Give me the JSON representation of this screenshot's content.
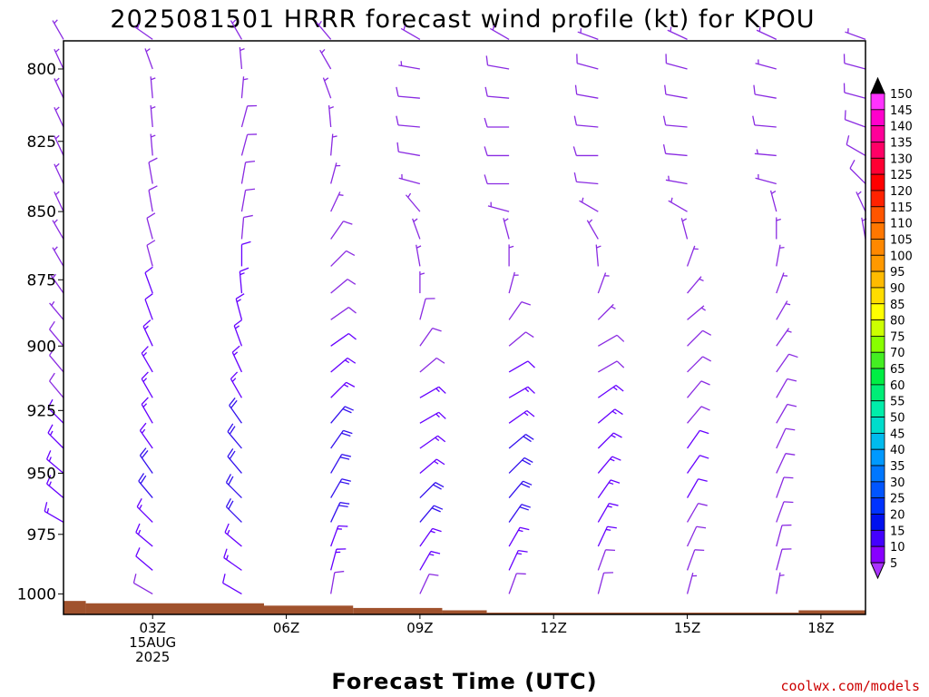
{
  "chart_data": {
    "type": "wind-barb-profile",
    "title": "2025081501 HRRR forecast wind profile (kt) for KPOU",
    "xlabel": "Forecast Time (UTC)",
    "credit": "coolwx.com/models",
    "x_ticks": [
      {
        "hour": 3,
        "lines": [
          "03Z",
          "15AUG",
          "2025"
        ]
      },
      {
        "hour": 6,
        "lines": [
          "06Z"
        ]
      },
      {
        "hour": 9,
        "lines": [
          "09Z"
        ]
      },
      {
        "hour": 12,
        "lines": [
          "12Z"
        ]
      },
      {
        "hour": 15,
        "lines": [
          "15Z"
        ]
      },
      {
        "hour": 18,
        "lines": [
          "18Z"
        ]
      }
    ],
    "xlim": [
      1,
      19
    ],
    "ylim": [
      790,
      1013
    ],
    "y_ticks": [
      800,
      825,
      850,
      875,
      900,
      925,
      950,
      975,
      1000
    ],
    "levels": [
      790,
      800,
      810,
      820,
      830,
      840,
      850,
      860,
      870,
      880,
      890,
      900,
      910,
      920,
      930,
      940,
      950,
      960,
      970,
      980,
      990,
      1000
    ],
    "surface_pressure_segments": [
      {
        "from": 1.0,
        "to": 1.5,
        "pressure": 1003
      },
      {
        "from": 1.5,
        "to": 5.5,
        "pressure": 1004
      },
      {
        "from": 5.5,
        "to": 7.5,
        "pressure": 1005
      },
      {
        "from": 7.5,
        "to": 9.5,
        "pressure": 1006
      },
      {
        "from": 9.5,
        "to": 10.5,
        "pressure": 1007
      },
      {
        "from": 10.5,
        "to": 17.5,
        "pressure": 1008
      },
      {
        "from": 17.5,
        "to": 19.0,
        "pressure": 1007
      }
    ],
    "times": [
      {
        "hour": 1,
        "bottom": 975,
        "dir": [
          330,
          335,
          335,
          335,
          335,
          335,
          335,
          330,
          330,
          325,
          320,
          320,
          320,
          320,
          315,
          315,
          310,
          310,
          300,
          300
        ],
        "spd": [
          3,
          4,
          5,
          5,
          6,
          6,
          6,
          7,
          7,
          7,
          7,
          8,
          8,
          10,
          12,
          14,
          16,
          17,
          17,
          15
        ]
      },
      {
        "hour": 3,
        "bottom": 1003,
        "dir": [
          305,
          340,
          355,
          355,
          355,
          350,
          350,
          345,
          345,
          340,
          340,
          335,
          330,
          330,
          330,
          325,
          325,
          320,
          315,
          310,
          310,
          300
        ],
        "spd": [
          4,
          5,
          6,
          6,
          7,
          8,
          9,
          10,
          11,
          12,
          12,
          13,
          14,
          15,
          16,
          17,
          18,
          18,
          17,
          15,
          12,
          8
        ]
      },
      {
        "hour": 5,
        "bottom": 1003,
        "dir": [
          330,
          355,
          5,
          15,
          15,
          10,
          10,
          5,
          0,
          355,
          345,
          340,
          335,
          330,
          325,
          320,
          320,
          315,
          315,
          310,
          305,
          300
        ],
        "spd": [
          5,
          5,
          6,
          8,
          8,
          9,
          10,
          11,
          12,
          13,
          14,
          15,
          16,
          17,
          18,
          19,
          20,
          20,
          19,
          17,
          15,
          12
        ]
      },
      {
        "hour": 7,
        "bottom": 1004,
        "dir": [
          320,
          330,
          340,
          355,
          5,
          15,
          25,
          35,
          45,
          50,
          55,
          55,
          50,
          45,
          40,
          35,
          30,
          30,
          25,
          20,
          15,
          10
        ],
        "spd": [
          4,
          5,
          5,
          6,
          6,
          6,
          7,
          8,
          9,
          10,
          11,
          12,
          14,
          16,
          18,
          19,
          20,
          21,
          20,
          17,
          14,
          10
        ]
      },
      {
        "hour": 9,
        "bottom": 1005,
        "dir": [
          300,
          280,
          275,
          275,
          280,
          285,
          320,
          340,
          350,
          0,
          15,
          35,
          50,
          60,
          60,
          55,
          50,
          45,
          40,
          35,
          30,
          25
        ],
        "spd": [
          6,
          7,
          8,
          9,
          8,
          6,
          5,
          5,
          6,
          7,
          8,
          9,
          11,
          13,
          15,
          16,
          17,
          18,
          18,
          16,
          13,
          9
        ]
      },
      {
        "hour": 11,
        "bottom": 1006,
        "dir": [
          300,
          280,
          275,
          270,
          270,
          270,
          285,
          345,
          0,
          15,
          35,
          50,
          60,
          60,
          55,
          50,
          45,
          40,
          35,
          30,
          25,
          20
        ],
        "spd": [
          7,
          8,
          9,
          9,
          9,
          8,
          6,
          5,
          6,
          7,
          8,
          10,
          12,
          14,
          16,
          18,
          19,
          20,
          20,
          17,
          13,
          9
        ]
      },
      {
        "hour": 13,
        "bottom": 1006,
        "dir": [
          290,
          285,
          280,
          275,
          270,
          275,
          300,
          330,
          355,
          20,
          45,
          60,
          60,
          55,
          50,
          45,
          40,
          35,
          30,
          25,
          20,
          15
        ],
        "spd": [
          7,
          8,
          9,
          9,
          9,
          8,
          6,
          5,
          5,
          6,
          7,
          9,
          11,
          13,
          15,
          16,
          17,
          17,
          16,
          14,
          11,
          8
        ]
      },
      {
        "hour": 15,
        "bottom": 1006,
        "dir": [
          295,
          285,
          280,
          275,
          275,
          280,
          300,
          345,
          20,
          40,
          50,
          45,
          45,
          40,
          40,
          35,
          35,
          30,
          30,
          25,
          20,
          15
        ],
        "spd": [
          7,
          8,
          8,
          8,
          8,
          7,
          5,
          4,
          5,
          6,
          7,
          8,
          9,
          10,
          11,
          12,
          12,
          12,
          11,
          10,
          8,
          7
        ]
      },
      {
        "hour": 17,
        "bottom": 1006,
        "dir": [
          295,
          285,
          280,
          275,
          275,
          285,
          345,
          0,
          10,
          20,
          30,
          35,
          35,
          30,
          30,
          25,
          25,
          20,
          20,
          15,
          15,
          10
        ],
        "spd": [
          7,
          7,
          8,
          8,
          7,
          6,
          5,
          4,
          5,
          6,
          6,
          7,
          8,
          9,
          9,
          10,
          10,
          10,
          10,
          9,
          8,
          7
        ]
      },
      {
        "hour": 19,
        "bottom": 860,
        "dir": [
          290,
          285,
          285,
          290,
          300,
          315,
          335,
          350
        ],
        "spd": [
          7,
          8,
          9,
          9,
          9,
          8,
          7,
          6
        ]
      }
    ],
    "colorbar": {
      "ticks": [
        150,
        145,
        140,
        135,
        130,
        125,
        120,
        115,
        110,
        105,
        100,
        95,
        90,
        85,
        80,
        75,
        70,
        65,
        60,
        55,
        50,
        45,
        40,
        35,
        30,
        25,
        20,
        15,
        10,
        5
      ],
      "colors": [
        "#000000",
        "#ff33ff",
        "#ff00cc",
        "#ff0099",
        "#ff0066",
        "#ff0033",
        "#ff0000",
        "#ff2200",
        "#ff5500",
        "#ff7700",
        "#ff8800",
        "#ff9900",
        "#ffbb00",
        "#ffdd00",
        "#ffff00",
        "#ccff00",
        "#88ff00",
        "#44ee22",
        "#00ee44",
        "#00ee77",
        "#00eeaa",
        "#00ddcc",
        "#00bbee",
        "#0099ff",
        "#0077ff",
        "#0055ff",
        "#0033ff",
        "#0011ee",
        "#4400ff",
        "#8800ff",
        "#aa33ff"
      ]
    }
  }
}
